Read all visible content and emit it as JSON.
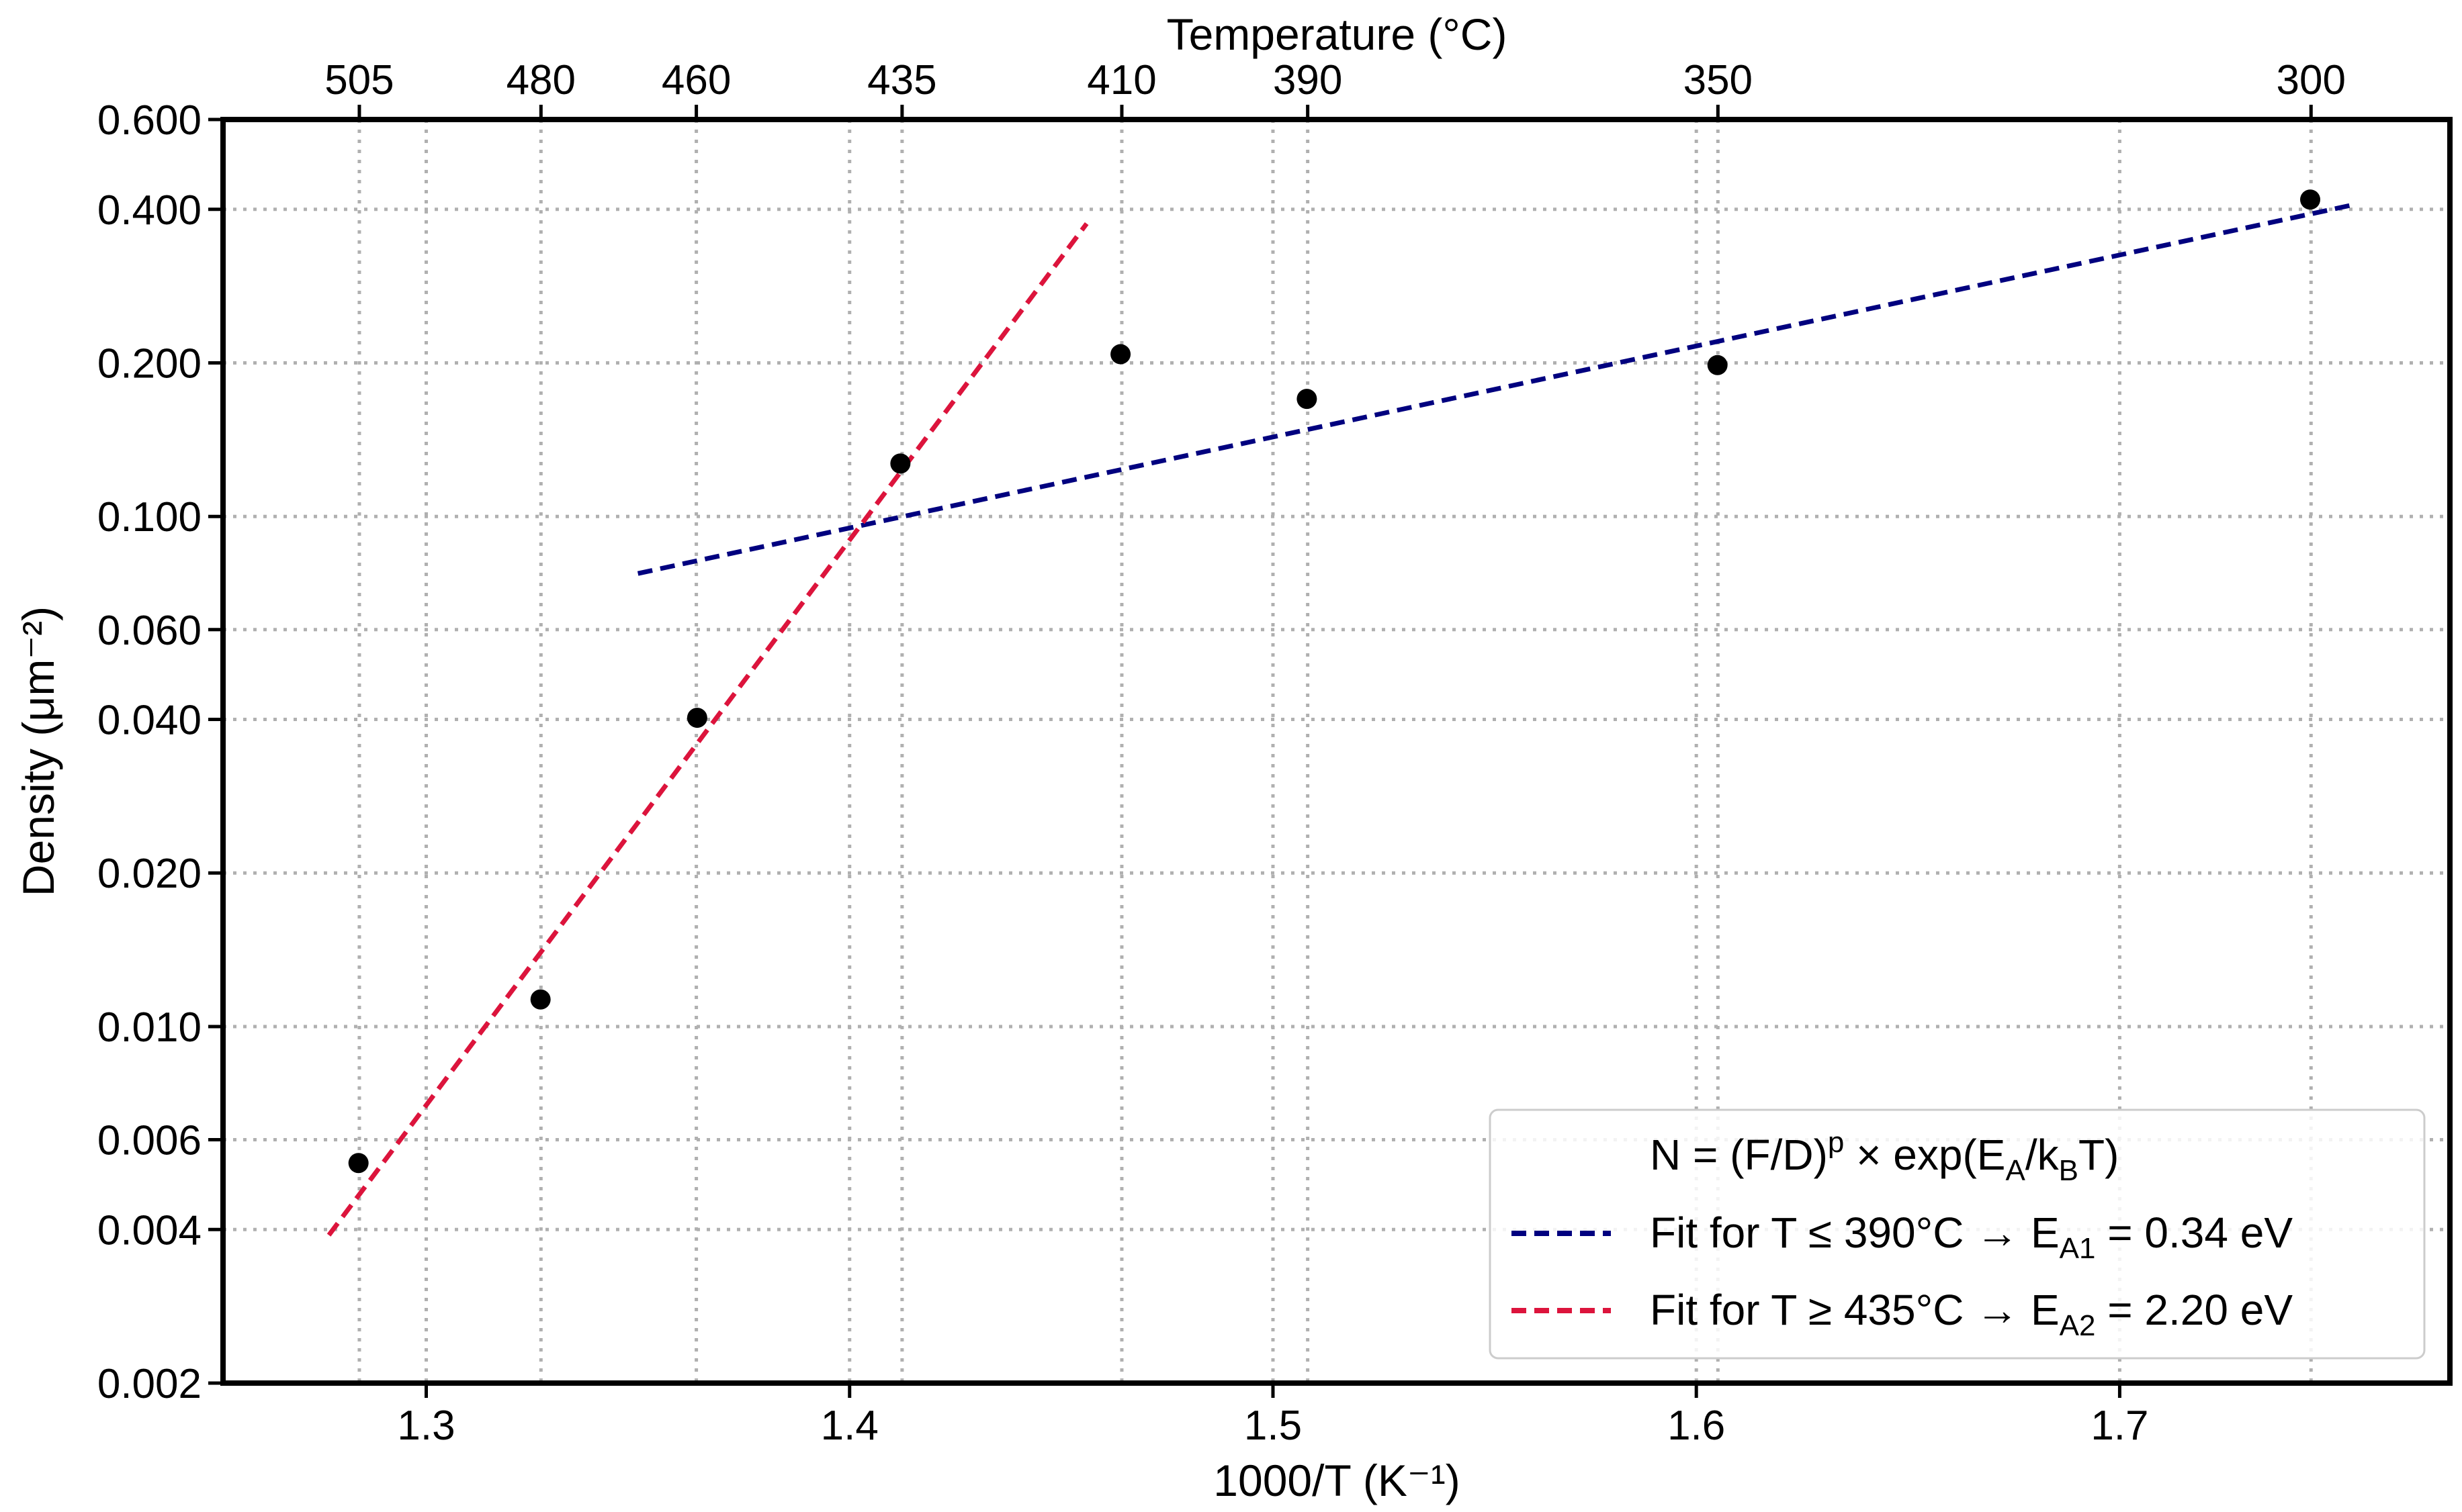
{
  "chart_data": {
    "type": "scatter",
    "xlabel": "1000/T   (K⁻¹)",
    "ylabel": "Density (μm⁻²)",
    "top_axis_title": "Temperature (°C)",
    "xlim": [
      1.252,
      1.778
    ],
    "ylim": [
      0.002,
      0.6
    ],
    "yscale": "log",
    "grid": true,
    "x_ticks": [
      {
        "value": 1.3,
        "label": "1.3"
      },
      {
        "value": 1.4,
        "label": "1.4"
      },
      {
        "value": 1.5,
        "label": "1.5"
      },
      {
        "value": 1.6,
        "label": "1.6"
      },
      {
        "value": 1.7,
        "label": "1.7"
      }
    ],
    "y_ticks": [
      {
        "value": 0.002,
        "label": "0.002"
      },
      {
        "value": 0.004,
        "label": "0.004"
      },
      {
        "value": 0.006,
        "label": "0.006"
      },
      {
        "value": 0.01,
        "label": "0.010"
      },
      {
        "value": 0.02,
        "label": "0.020"
      },
      {
        "value": 0.04,
        "label": "0.040"
      },
      {
        "value": 0.06,
        "label": "0.060"
      },
      {
        "value": 0.1,
        "label": "0.100"
      },
      {
        "value": 0.2,
        "label": "0.200"
      },
      {
        "value": 0.4,
        "label": "0.400"
      },
      {
        "value": 0.6,
        "label": "0.600"
      }
    ],
    "top_ticks": [
      {
        "value": 1.2842,
        "label": "505"
      },
      {
        "value": 1.3271,
        "label": "480"
      },
      {
        "value": 1.3638,
        "label": "460"
      },
      {
        "value": 1.4124,
        "label": "435"
      },
      {
        "value": 1.4643,
        "label": "410"
      },
      {
        "value": 1.5082,
        "label": "390"
      },
      {
        "value": 1.6051,
        "label": "350"
      },
      {
        "value": 1.7452,
        "label": "300"
      }
    ],
    "points": [
      {
        "x": 1.284,
        "y": 0.0054
      },
      {
        "x": 1.327,
        "y": 0.0113
      },
      {
        "x": 1.364,
        "y": 0.0403
      },
      {
        "x": 1.412,
        "y": 0.127
      },
      {
        "x": 1.464,
        "y": 0.208
      },
      {
        "x": 1.508,
        "y": 0.17
      },
      {
        "x": 1.605,
        "y": 0.198
      },
      {
        "x": 1.745,
        "y": 0.418
      }
    ],
    "series": [
      {
        "name": "fit-low",
        "label": "Fit for T ≤ 390°C → E",
        "sub": "A1",
        "suffix": " = 0.34 eV",
        "color": "#00007f",
        "x": [
          1.35,
          1.755
        ],
        "y": [
          0.0773,
          0.408
        ]
      },
      {
        "name": "fit-high",
        "label": "Fit for T ≥ 435°C → E",
        "sub": "A2",
        "suffix": " = 2.20 eV",
        "color": "#dc143c",
        "x": [
          1.277,
          1.456
        ],
        "y": [
          0.0039,
          0.375
        ]
      }
    ],
    "legend": {
      "position": "lower-right",
      "title": {
        "main": "N = (F/D)",
        "sup": "p",
        "mid": " × exp(E",
        "sub1": "A",
        "mid2": "/k",
        "sub2": "B",
        "end": "T)"
      }
    }
  }
}
